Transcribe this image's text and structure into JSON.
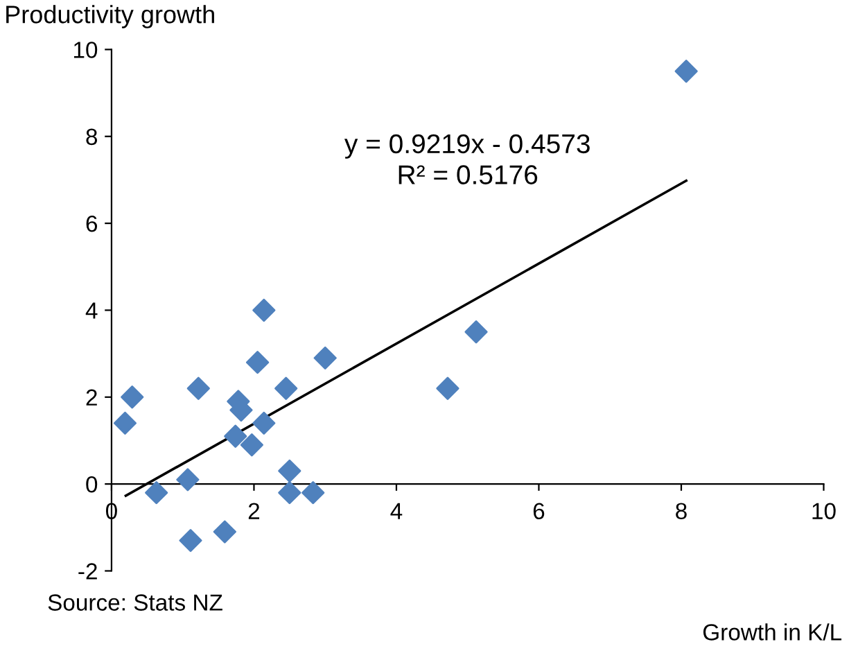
{
  "chart_data": {
    "type": "scatter",
    "ylabel": "Productivity growth",
    "xlabel": "Growth in K/L",
    "annotations": [
      "y = 0.9219x - 0.4573\nR² = 0.5176",
      "Source: Stats NZ"
    ],
    "xlim": [
      0,
      10
    ],
    "xticks": [
      0,
      2,
      4,
      6,
      8,
      10
    ],
    "ylim": [
      -2,
      10
    ],
    "yticks": [
      -2,
      0,
      2,
      4,
      6,
      8,
      10
    ],
    "grid": false,
    "legend": false,
    "series": [
      {
        "marker": "diamond",
        "color": "#4f81bd",
        "x": [
          0.19,
          0.29,
          0.63,
          1.07,
          1.11,
          1.22,
          1.59,
          1.74,
          1.78,
          1.82,
          1.97,
          2.05,
          2.14,
          2.14,
          2.45,
          2.5,
          2.5,
          2.83,
          3.0,
          4.72,
          5.12,
          8.07
        ],
        "values": [
          1.4,
          2.0,
          -0.2,
          0.1,
          -1.3,
          2.2,
          -1.1,
          1.1,
          1.9,
          1.7,
          0.9,
          2.8,
          4.0,
          1.4,
          2.2,
          0.3,
          -0.2,
          -0.2,
          2.9,
          2.2,
          3.5,
          9.5
        ]
      },
      {
        "type": "line",
        "color": "#000000",
        "line_style": "solid",
        "x": [
          0.2,
          8.07
        ],
        "values": [
          -0.27,
          6.98
        ]
      }
    ]
  }
}
